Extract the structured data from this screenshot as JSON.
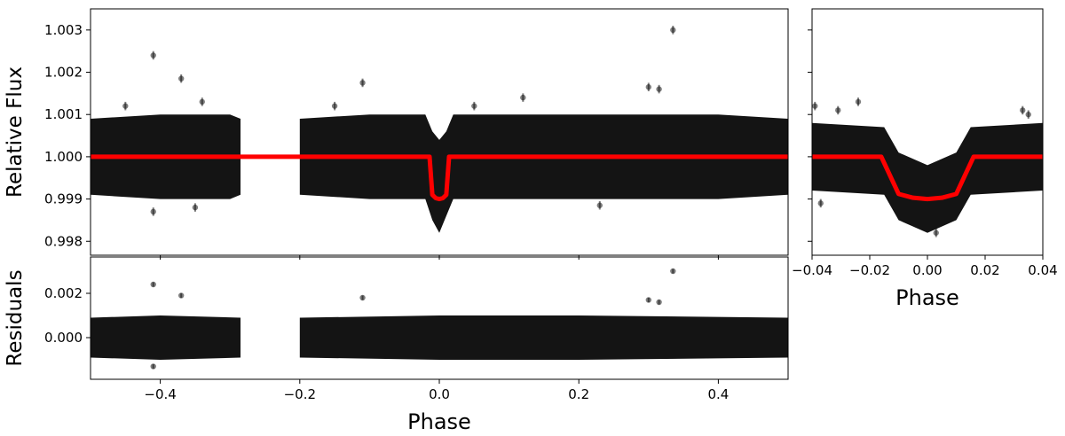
{
  "chart_data": [
    {
      "type": "scatter",
      "ylabel": "Relative Flux",
      "xlim": [
        -0.5,
        0.5
      ],
      "ylim": [
        0.99767,
        1.0035
      ],
      "xticks": [
        -0.4,
        -0.2,
        0,
        0.2,
        0.4
      ],
      "yticks": [
        0.998,
        0.999,
        {
          "value": 1,
          "label": "1.000"
        },
        1.001,
        1.002,
        1.003
      ],
      "series": [
        {
          "type": "area",
          "color": "#000000",
          "x": [
            -0.5,
            -0.4,
            -0.3,
            -0.285,
            -0.24,
            -0.2,
            -0.1,
            -0.02,
            -0.01,
            0,
            0.01,
            0.02,
            0.1,
            0.2,
            0.3,
            0.4,
            0.5
          ],
          "low": [
            0.9991,
            0.999,
            0.999,
            0.9991,
            null,
            0.9991,
            0.999,
            0.999,
            0.9985,
            0.9982,
            0.9986,
            0.999,
            0.999,
            0.999,
            0.999,
            0.999,
            0.9991
          ],
          "high": [
            1.0009,
            1.001,
            1.001,
            1.0009,
            null,
            1.0009,
            1.001,
            1.001,
            1.0006,
            1.0004,
            1.0006,
            1.001,
            1.001,
            1.001,
            1.001,
            1.001,
            1.0009
          ]
        },
        {
          "type": "scatter",
          "color": "#000000",
          "x": [
            -0.41,
            -0.37,
            -0.41,
            -0.34,
            -0.35,
            -0.45,
            -0.11,
            -0.15,
            0.05,
            0.12,
            0.23,
            0.3,
            0.315,
            0.335
          ],
          "values": [
            1.0024,
            1.00185,
            0.9987,
            1.0013,
            0.9988,
            1.0012,
            1.00175,
            1.0012,
            1.0012,
            1.0014,
            0.99885,
            1.00165,
            1.0016,
            1.003
          ],
          "errors": [
            0.0001,
            0.0001,
            0.0001,
            0.0001,
            0.0001,
            0.0001,
            0.0001,
            0.0001,
            0.0001,
            0.0001,
            0.0001,
            0.0001,
            0.0001,
            0.0001
          ]
        },
        {
          "type": "line",
          "color": "#ff0000",
          "x": [
            -0.5,
            -0.014,
            -0.01,
            -0.005,
            0,
            0.005,
            0.01,
            0.014,
            0.5
          ],
          "values": [
            1,
            1,
            0.9991,
            0.99902,
            0.999,
            0.99902,
            0.9991,
            1,
            1
          ]
        }
      ]
    },
    {
      "type": "scatter",
      "xlabel": "Phase",
      "xlim": [
        -0.04,
        0.04
      ],
      "ylim": [
        0.99767,
        1.0035
      ],
      "xticks": [
        {
          "value": -0.04,
          "label": "−0.04"
        },
        {
          "value": -0.02,
          "label": "−0.02"
        },
        {
          "value": 0,
          "label": "0.00"
        },
        0.02,
        0.04
      ],
      "yticks": [
        0.998,
        0.999,
        1,
        1.001,
        1.002,
        1.003
      ],
      "ytick_labels": false,
      "series": [
        {
          "type": "area",
          "color": "#000000",
          "x": [
            -0.04,
            -0.015,
            -0.01,
            0,
            0.01,
            0.015,
            0.04
          ],
          "low": [
            0.9992,
            0.9991,
            0.9985,
            0.9982,
            0.9985,
            0.9991,
            0.9992
          ],
          "high": [
            1.0008,
            1.0007,
            1.0001,
            0.9998,
            1.0001,
            1.0007,
            1.0008
          ]
        },
        {
          "type": "scatter",
          "color": "#000000",
          "x": [
            -0.039,
            -0.031,
            -0.037,
            -0.024,
            0.003,
            0.033,
            0.035
          ],
          "values": [
            1.0012,
            1.0011,
            0.9989,
            1.0013,
            0.9982,
            1.0011,
            1.001
          ],
          "errors": [
            0.0001,
            0.0001,
            0.0001,
            0.0001,
            0.0001,
            0.0001,
            0.0001
          ]
        },
        {
          "type": "line",
          "color": "#ff0000",
          "x": [
            -0.04,
            -0.016,
            -0.01,
            -0.005,
            0,
            0.005,
            0.01,
            0.016,
            0.04
          ],
          "values": [
            1,
            1,
            0.99912,
            0.99903,
            0.999,
            0.99903,
            0.99912,
            1,
            1
          ]
        }
      ]
    },
    {
      "type": "scatter",
      "xlabel": "Phase",
      "ylabel": "Residuals",
      "xlim": [
        -0.5,
        0.5
      ],
      "ylim": [
        -0.00188,
        0.00364
      ],
      "xticks": [
        {
          "value": -0.4,
          "label": "−0.4"
        },
        {
          "value": -0.2,
          "label": "−0.2"
        },
        {
          "value": 0,
          "label": "0.0"
        },
        0.2,
        0.4
      ],
      "yticks": [
        {
          "value": 0,
          "label": "0.000"
        },
        0.002
      ],
      "series": [
        {
          "type": "area",
          "color": "#000000",
          "x": [
            -0.5,
            -0.4,
            -0.285,
            -0.24,
            -0.2,
            0,
            0.2,
            0.5
          ],
          "low": [
            -0.0009,
            -0.001,
            -0.0009,
            null,
            -0.0009,
            -0.001,
            -0.001,
            -0.0009
          ],
          "high": [
            0.0009,
            0.001,
            0.0009,
            null,
            0.0009,
            0.001,
            0.001,
            0.0009
          ]
        },
        {
          "type": "scatter",
          "color": "#000000",
          "x": [
            -0.41,
            -0.37,
            -0.41,
            -0.11,
            0.3,
            0.315,
            0.335
          ],
          "values": [
            0.0024,
            0.0019,
            -0.0013,
            0.0018,
            0.0017,
            0.0016,
            0.003
          ],
          "errors": [
            0.0001,
            0.0001,
            0.0001,
            0.0001,
            0.0001,
            0.0001,
            0.0001
          ]
        }
      ]
    }
  ]
}
